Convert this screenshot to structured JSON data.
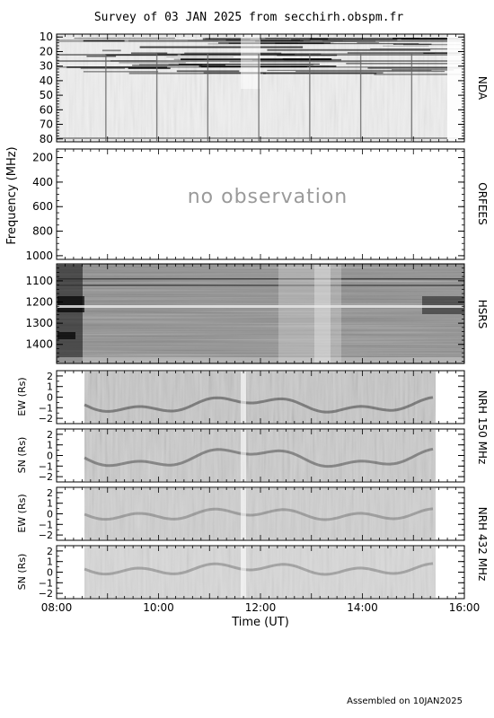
{
  "chart_data": {
    "type": "heatmap",
    "title": "Survey of 03 JAN 2025 from secchirh.obspm.fr",
    "footer": "Assembled on 10JAN2025",
    "xlabel": "Time (UT)",
    "ylabel": "Frequency (MHz)",
    "x_ticks": [
      "08:00",
      "10:00",
      "12:00",
      "14:00",
      "16:00"
    ],
    "x_range": [
      "08:00",
      "16:00"
    ],
    "no_observation_text": "no observation",
    "panels": [
      {
        "id": "nda",
        "label": "NDA",
        "ylim": [
          8,
          82
        ],
        "yticks": [
          "10",
          "20",
          "30",
          "40",
          "50",
          "60",
          "70",
          "80"
        ],
        "yvals": [
          10,
          20,
          30,
          40,
          50,
          60,
          70,
          80
        ]
      },
      {
        "id": "orfees",
        "label": "ORFEES",
        "ylim": [
          130,
          1030
        ],
        "yticks": [
          "200",
          "400",
          "600",
          "800",
          "1000"
        ],
        "yvals": [
          200,
          400,
          600,
          800,
          1000
        ]
      },
      {
        "id": "hsrs",
        "label": "HSRS",
        "ylim": [
          1020,
          1490
        ],
        "yticks": [
          "1100",
          "1200",
          "1300",
          "1400"
        ],
        "yvals": [
          1100,
          1200,
          1300,
          1400
        ]
      },
      {
        "id": "nrh150ew",
        "ylabel": "EW (Rs)",
        "ylim": [
          -2.5,
          2.5
        ],
        "yticks": [
          "2",
          "1",
          "0",
          "−1",
          "−2"
        ],
        "yvals": [
          2,
          1,
          0,
          -1,
          -2
        ]
      },
      {
        "id": "nrh150sn",
        "ylabel": "SN (Rs)",
        "ylim": [
          -2.5,
          2.5
        ],
        "yticks": [
          "2",
          "1",
          "0",
          "−1",
          "−2"
        ],
        "yvals": [
          2,
          1,
          0,
          -1,
          -2
        ]
      },
      {
        "id": "nrh432ew",
        "ylabel": "EW (Rs)",
        "ylim": [
          -2.5,
          2.5
        ],
        "yticks": [
          "2",
          "1",
          "0",
          "−1",
          "−2"
        ],
        "yvals": [
          2,
          1,
          0,
          -1,
          -2
        ]
      },
      {
        "id": "nrh432sn",
        "ylabel": "SN (Rs)",
        "ylim": [
          -2.5,
          2.5
        ],
        "yticks": [
          "2",
          "1",
          "0",
          "−1",
          "−2"
        ],
        "yvals": [
          2,
          1,
          0,
          -1,
          -2
        ]
      }
    ],
    "nrh_labels": {
      "nrh150": "NRH 150 MHz",
      "nrh432": "NRH 432 MHz"
    },
    "nrh_coverage": [
      "08:30",
      "15:25"
    ]
  }
}
